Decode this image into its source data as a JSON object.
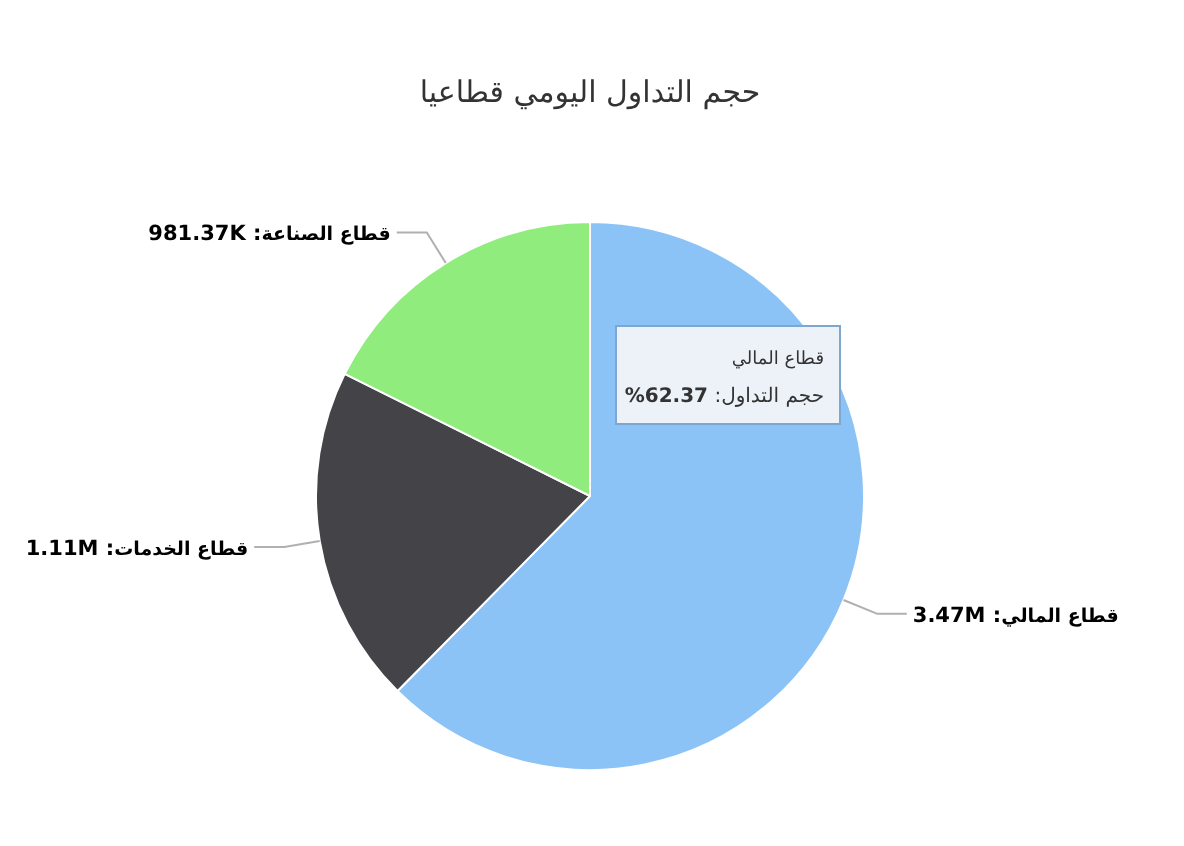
{
  "chart_data": {
    "type": "pie",
    "title": "حجم التداول اليومي قطاعيا",
    "categories": [
      "قطاع المالي",
      "قطاع الخدمات",
      "قطاع الصناعة"
    ],
    "values": [
      3470000,
      1110000,
      981370
    ],
    "value_labels": [
      ": 3.47M",
      ": 1.11M",
      ": 981.37K"
    ],
    "colors": [
      "#8cc3f6",
      "#434348",
      "#90ed7d"
    ],
    "annotations": [
      "قطاع المالي",
      "حجم التداول: **62.37%**"
    ]
  }
}
